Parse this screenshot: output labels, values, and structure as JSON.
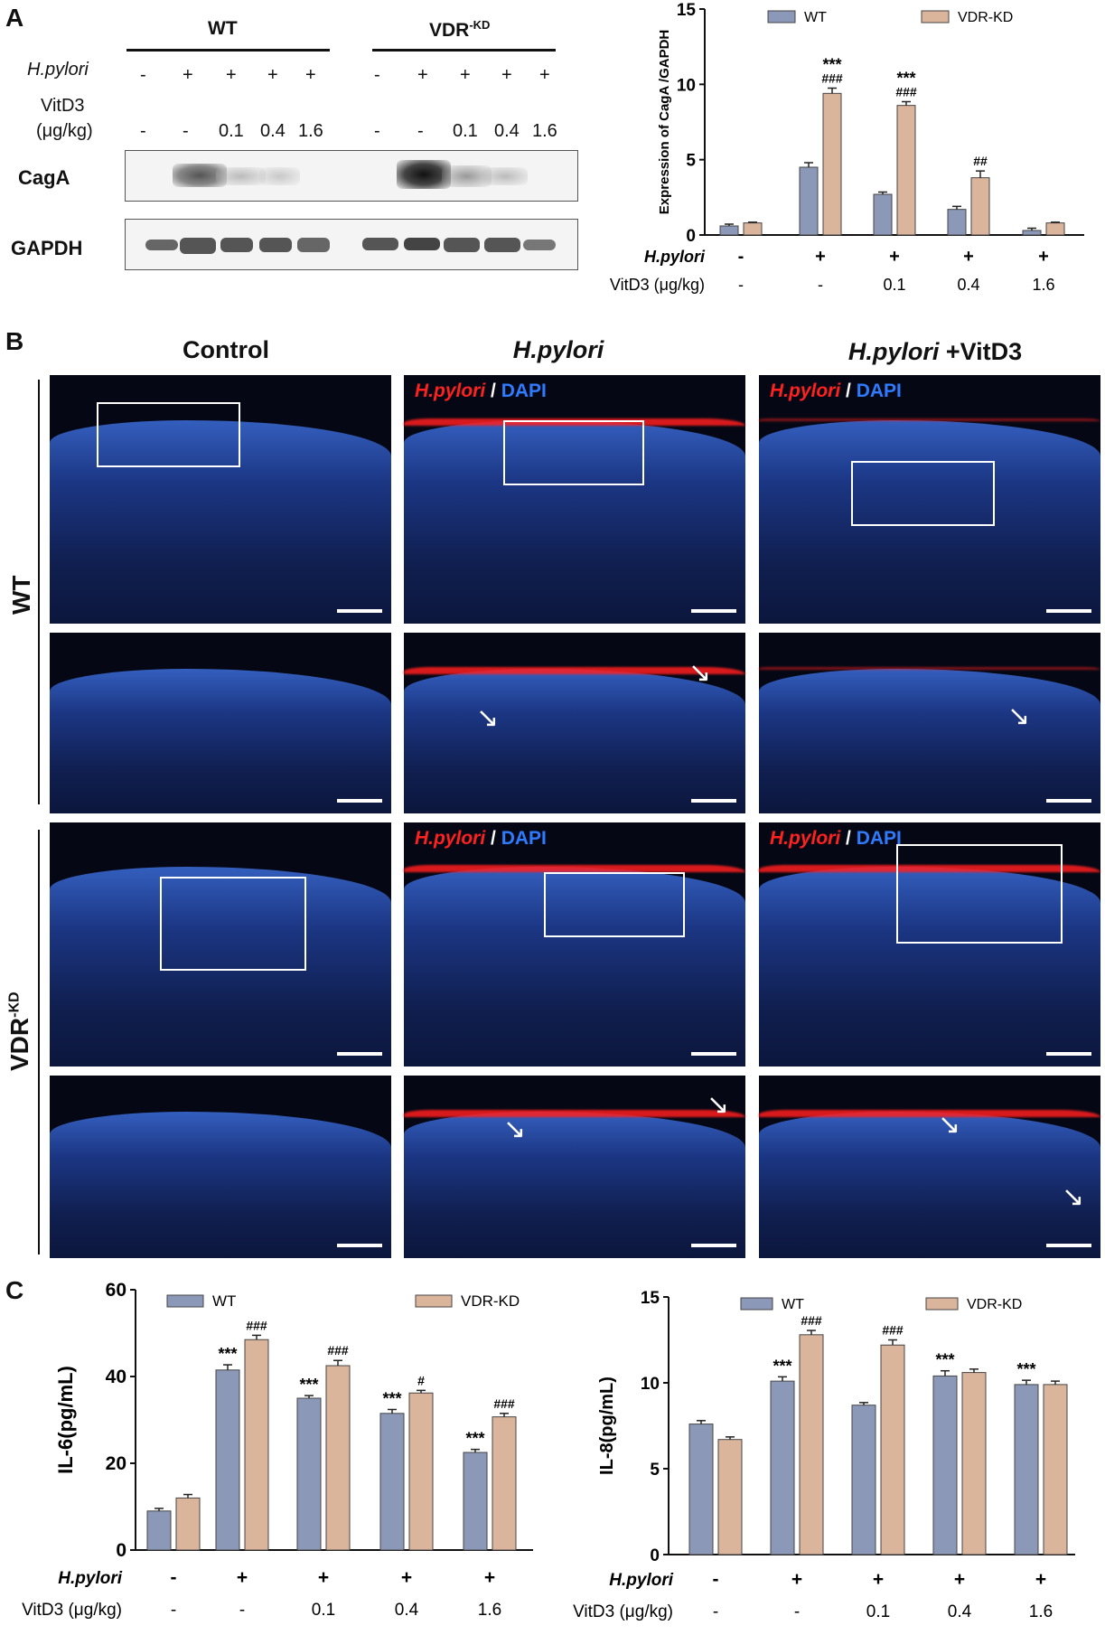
{
  "panels": {
    "a": "A",
    "b": "B",
    "c": "C"
  },
  "westernBlot": {
    "groupWT": "WT",
    "groupVDR": "VDR",
    "groupVDRSup": "-KD",
    "hpyloriLabel": "H.pylori",
    "vitd3Label1": "VitD3",
    "vitd3Label2": "(μg/kg)",
    "hpyloriSigns": [
      "-",
      "+",
      "+",
      "+",
      "+",
      "-",
      "+",
      "+",
      "+",
      "+"
    ],
    "vitd3Doses": [
      "-",
      "-",
      "0.1",
      "0.4",
      "1.6",
      "-",
      "-",
      "0.1",
      "0.4",
      "1.6"
    ],
    "blotCagA": "CagA",
    "blotGAPDH": "GAPDH"
  },
  "treatmentRows": {
    "hpylori": "H.pylori",
    "vitd3": "VitD3 (μg/kg)",
    "hpyloriSigns": [
      "-",
      "+",
      "+",
      "+",
      "+"
    ],
    "vitd3Doses": [
      "-",
      "-",
      "0.1",
      "0.4",
      "1.6"
    ]
  },
  "colors": {
    "wt": "#8c98b8",
    "vdr": "#dbb59b",
    "background": "#ffffff",
    "nucleiStain": "#2a5cc0",
    "hpyloriStain": "#ff1e1e"
  },
  "microscopy": {
    "colControl": "Control",
    "colHpylori": "H.pylori",
    "colHpyloriVit": "H.pylori",
    "colHpyloriVitSuffix": " +VitD3",
    "rowWT": "WT",
    "rowVDR": "VDR",
    "rowVDRSup": "-KD",
    "stainHpylori": "H.pylori",
    "stainSep": "/",
    "stainDAPI": "DAPI"
  },
  "chart_data": [
    {
      "type": "bar",
      "panel": "A",
      "ylabel": "Expression of CagA /GAPDH",
      "ylim": [
        0,
        15
      ],
      "yticks": [
        0,
        5,
        10,
        15
      ],
      "series": [
        {
          "name": "WT",
          "values": [
            0.6,
            4.5,
            2.7,
            1.7,
            0.3
          ],
          "errors": [
            0.12,
            0.3,
            0.15,
            0.2,
            0.15
          ],
          "annotations": [
            "",
            "",
            "",
            "",
            ""
          ]
        },
        {
          "name": "VDR-KD",
          "values": [
            0.8,
            9.4,
            8.6,
            3.8,
            0.8
          ],
          "errors": [
            0.05,
            0.35,
            0.25,
            0.45,
            0.05
          ],
          "annotations": [
            "",
            "***\n###",
            "***\n###",
            "##",
            ""
          ]
        }
      ],
      "legend": "top"
    },
    {
      "type": "bar",
      "panel": "C",
      "ylabel": "IL-6(pg/mL)",
      "ylim": [
        0,
        60
      ],
      "yticks": [
        0,
        20,
        40,
        60
      ],
      "series": [
        {
          "name": "WT",
          "values": [
            9,
            41.5,
            35,
            31.5,
            22.5
          ],
          "errors": [
            0.6,
            1.2,
            0.6,
            0.9,
            0.7
          ],
          "annotations": [
            "",
            "***",
            "***",
            "***",
            "***"
          ]
        },
        {
          "name": "VDR-KD",
          "values": [
            12,
            48.5,
            42.5,
            36.2,
            30.7
          ],
          "errors": [
            0.8,
            1.0,
            1.2,
            0.6,
            0.8
          ],
          "annotations": [
            "",
            "###",
            "###",
            "#",
            "###"
          ]
        }
      ],
      "legend": "top"
    },
    {
      "type": "bar",
      "panel": "C",
      "ylabel": "IL-8(pg/mL)",
      "ylim": [
        0,
        15
      ],
      "yticks": [
        0,
        5,
        10,
        15
      ],
      "series": [
        {
          "name": "WT",
          "values": [
            7.6,
            10.1,
            8.7,
            10.4,
            9.9
          ],
          "errors": [
            0.2,
            0.25,
            0.15,
            0.3,
            0.25
          ],
          "annotations": [
            "",
            "***",
            "",
            "***",
            "***"
          ]
        },
        {
          "name": "VDR-KD",
          "values": [
            6.7,
            12.8,
            12.2,
            10.6,
            9.9
          ],
          "errors": [
            0.15,
            0.25,
            0.3,
            0.2,
            0.2
          ],
          "annotations": [
            "",
            "###",
            "###",
            "",
            ""
          ]
        }
      ],
      "legend": "top"
    }
  ]
}
